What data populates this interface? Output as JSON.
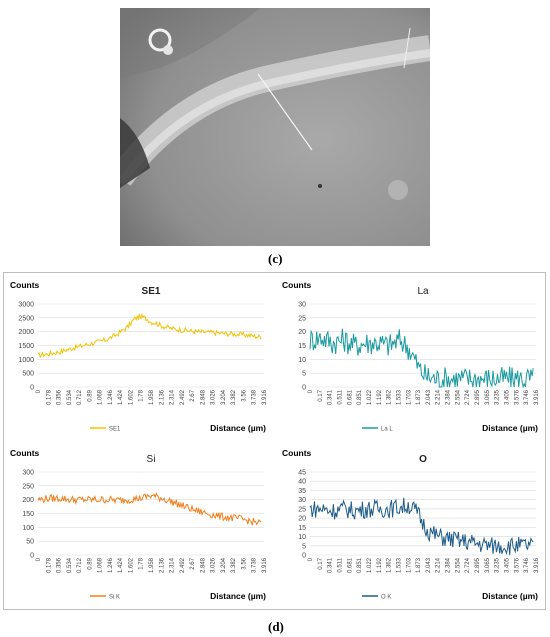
{
  "captions": {
    "image_panel": "(c)",
    "chart_panel": "(d)"
  },
  "micrograph": {
    "icon": "sem-micrograph-image"
  },
  "chart_data": [
    {
      "type": "line",
      "title": "SE1",
      "ylabel": "Counts",
      "xlabel": "Distance (µm)",
      "ylim": [
        0,
        3000
      ],
      "yticks": [
        0,
        500,
        1000,
        1500,
        2000,
        2500,
        3000
      ],
      "xlim": [
        0,
        4.0
      ],
      "xticks": [
        "0",
        "0.178",
        "0.356",
        "0.534",
        "0.712",
        "0.89",
        "1.068",
        "1.246",
        "1.424",
        "1.602",
        "1.78",
        "1.958",
        "2.136",
        "2.314",
        "2.492",
        "2.67",
        "2.848",
        "3.026",
        "3.204",
        "3.382",
        "3.56",
        "3.738",
        "3.916"
      ],
      "grid": true,
      "legend": "bottom",
      "color": "#F2C200",
      "series": [
        {
          "name": "SE1",
          "x": [
            0,
            0.2,
            0.4,
            0.6,
            0.8,
            1.0,
            1.2,
            1.4,
            1.6,
            1.7,
            1.8,
            1.9,
            2.0,
            2.1,
            2.2,
            2.4,
            2.6,
            2.8,
            3.0,
            3.2,
            3.4,
            3.6,
            3.8,
            3.95
          ],
          "values": [
            1150,
            1200,
            1280,
            1400,
            1500,
            1600,
            1700,
            1900,
            2200,
            2450,
            2550,
            2500,
            2350,
            2300,
            2200,
            2100,
            2050,
            2000,
            1980,
            1950,
            1920,
            1900,
            1850,
            1800
          ]
        }
      ]
    },
    {
      "type": "line",
      "title": "La",
      "ylabel": "Counts",
      "xlabel": "Distance (µm)",
      "ylim": [
        0,
        30
      ],
      "yticks": [
        0,
        5,
        10,
        15,
        20,
        25,
        30
      ],
      "xlim": [
        0,
        4.0
      ],
      "xticks": [
        "0",
        "0.17",
        "0.341",
        "0.511",
        "0.681",
        "0.851",
        "1.022",
        "1.192",
        "1.362",
        "1.533",
        "1.703",
        "1.873",
        "2.043",
        "2.214",
        "2.384",
        "2.554",
        "2.724",
        "2.895",
        "3.065",
        "3.235",
        "3.405",
        "3.576",
        "3.746",
        "3.916"
      ],
      "grid": true,
      "legend": "bottom",
      "color": "#1A9AA0",
      "series": [
        {
          "name": "La L",
          "x": [
            0,
            0.2,
            0.4,
            0.6,
            0.8,
            1.0,
            1.2,
            1.4,
            1.6,
            1.75,
            1.85,
            1.95,
            2.05,
            2.2,
            2.4,
            2.6,
            2.8,
            3.0,
            3.2,
            3.4,
            3.6,
            3.8,
            3.95
          ],
          "values": [
            17,
            18,
            16,
            17,
            15,
            16,
            16,
            15,
            17,
            14,
            10,
            6,
            4,
            3,
            3,
            3,
            3,
            3,
            3,
            3,
            3,
            3,
            3
          ]
        }
      ]
    },
    {
      "type": "line",
      "title": "Si",
      "ylabel": "Counts",
      "xlabel": "Distance (µm)",
      "ylim": [
        0,
        300
      ],
      "yticks": [
        0,
        50,
        100,
        150,
        200,
        250,
        300
      ],
      "xlim": [
        0,
        4.0
      ],
      "xticks": [
        "0",
        "0.178",
        "0.356",
        "0.534",
        "0.712",
        "0.89",
        "1.068",
        "1.246",
        "1.424",
        "1.602",
        "1.78",
        "1.958",
        "2.136",
        "2.314",
        "2.492",
        "2.67",
        "2.848",
        "3.026",
        "3.204",
        "3.382",
        "3.56",
        "3.738",
        "3.916"
      ],
      "grid": true,
      "legend": "bottom",
      "color": "#F07F1A",
      "series": [
        {
          "name": "Si K",
          "x": [
            0,
            0.2,
            0.4,
            0.6,
            0.8,
            1.0,
            1.2,
            1.4,
            1.6,
            1.8,
            2.0,
            2.2,
            2.4,
            2.6,
            2.8,
            3.0,
            3.2,
            3.4,
            3.6,
            3.8,
            3.95
          ],
          "values": [
            200,
            205,
            205,
            200,
            200,
            200,
            200,
            198,
            200,
            205,
            215,
            205,
            190,
            175,
            160,
            150,
            140,
            135,
            130,
            120,
            115
          ]
        }
      ]
    },
    {
      "type": "line",
      "title": "O",
      "ylabel": "Counts",
      "xlabel": "Distance (µm)",
      "ylim": [
        0,
        45
      ],
      "yticks": [
        0,
        5,
        10,
        15,
        20,
        25,
        30,
        35,
        40,
        45
      ],
      "xlim": [
        0,
        4.0
      ],
      "xticks": [
        "0",
        "0.17",
        "0.341",
        "0.511",
        "0.681",
        "0.851",
        "1.022",
        "1.192",
        "1.362",
        "1.533",
        "1.703",
        "1.873",
        "2.043",
        "2.214",
        "2.384",
        "2.554",
        "2.724",
        "2.895",
        "3.065",
        "3.235",
        "3.405",
        "3.576",
        "3.746",
        "3.916"
      ],
      "grid": true,
      "legend": "bottom",
      "color": "#1F5C8A",
      "series": [
        {
          "name": "O K",
          "x": [
            0,
            0.2,
            0.4,
            0.6,
            0.8,
            1.0,
            1.2,
            1.4,
            1.6,
            1.75,
            1.9,
            2.0,
            2.1,
            2.2,
            2.4,
            2.6,
            2.8,
            3.0,
            3.2,
            3.4,
            3.6,
            3.8,
            3.95
          ],
          "values": [
            25,
            25,
            24,
            25,
            24,
            25,
            25,
            25,
            26,
            27,
            23,
            17,
            13,
            11,
            9,
            8,
            7,
            6,
            5,
            5,
            5,
            5,
            5
          ]
        }
      ]
    }
  ]
}
